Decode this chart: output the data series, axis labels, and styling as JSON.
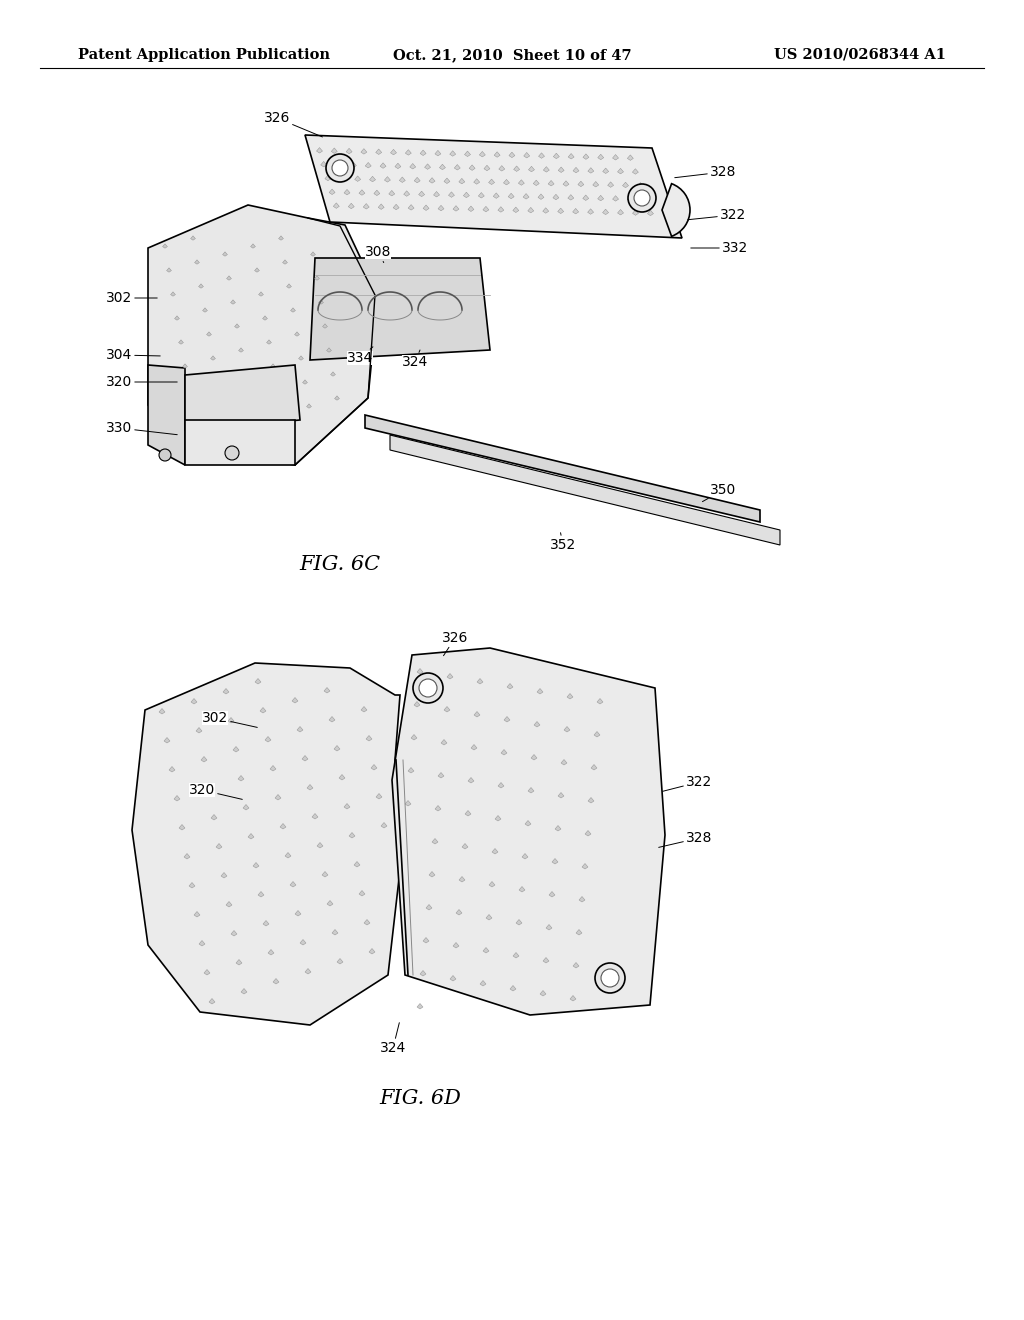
{
  "background_color": "#ffffff",
  "header_left": "Patent Application Publication",
  "header_center": "Oct. 21, 2010  Sheet 10 of 47",
  "header_right": "US 2010/0268344 A1",
  "header_fontsize": 10.5,
  "fig6c_label": "FIG. 6C",
  "fig6d_label": "FIG. 6D",
  "label_fontsize": 15,
  "annotation_fontsize": 10,
  "line_color": "#000000",
  "fill_light": "#f0f0f0",
  "fill_medium": "#e0e0e0",
  "fill_dark": "#c8c8c8"
}
